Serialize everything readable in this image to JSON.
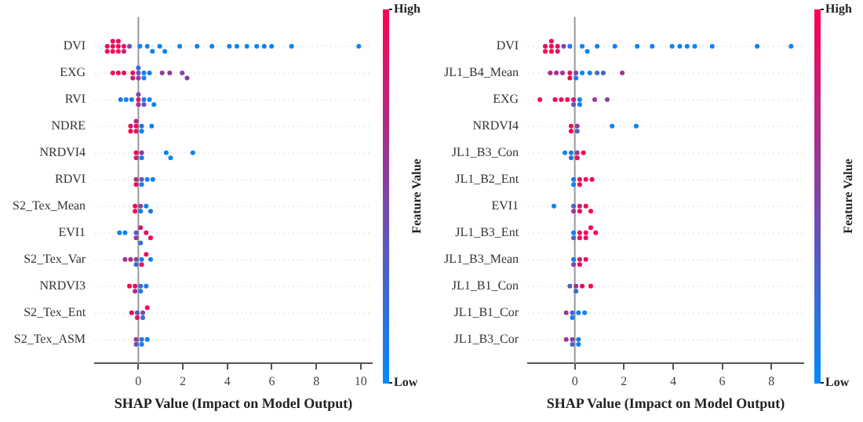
{
  "chart_data": [
    {
      "type": "scatter",
      "orientation": "horizontal",
      "marker": "circle",
      "grid": "y",
      "xlabel": "SHAP Value (Impact on Model Output)",
      "clabel": "Feature Value",
      "annotations": [
        "High",
        "Low"
      ],
      "xlim": [
        -1.95,
        10.5
      ],
      "xticks": [
        0,
        2,
        4,
        6,
        8,
        10
      ],
      "ref_lines": [
        {
          "axis": "x",
          "value": 0,
          "color": "#999999"
        }
      ],
      "categories": [
        "DVI",
        "EXG",
        "RVI",
        "NDRE",
        "NRDVI4",
        "RDVI",
        "S2_Tex_Mean",
        "EVI1",
        "S2_Tex_Var",
        "NRDVI3",
        "S2_Tex_Ent",
        "S2_Tex_ASM"
      ],
      "series": [
        {
          "x": [
            "DVI",
            "DVI",
            "DVI",
            "DVI",
            "DVI",
            "DVI",
            "DVI",
            "DVI",
            "DVI",
            "DVI",
            "DVI",
            "DVI",
            "DVI",
            "DVI",
            "DVI",
            "DVI",
            "DVI",
            "DVI",
            "DVI",
            "DVI",
            "DVI",
            "DVI",
            "DVI",
            "DVI",
            "DVI",
            "DVI",
            "DVI"
          ],
          "values": [
            -1.4,
            -1.4,
            -1.15,
            -1.15,
            -1.15,
            -0.9,
            -0.9,
            -0.9,
            -0.65,
            -0.65,
            -0.4,
            0.07,
            0.4,
            0.63,
            0.96,
            1.19,
            1.86,
            2.64,
            3.31,
            4.09,
            4.43,
            4.88,
            5.32,
            5.66,
            5.99,
            6.89,
            9.91
          ],
          "colors": [
            "#e60e63",
            "#ff0052",
            "#f2075a",
            "#ff0052",
            "#e60e63",
            "#f2075a",
            "#ff0052",
            "#e60e63",
            "#e60e63",
            "#cc1c74",
            "#8045a7",
            "#0d83f3",
            "#0d83f3",
            "#0d83f3",
            "#0d83f3",
            "#0d83f3",
            "#0d83f3",
            "#0d83f3",
            "#0d83f3",
            "#0d83f3",
            "#0d83f3",
            "#0d83f3",
            "#0d83f3",
            "#0d83f3",
            "#0d83f3",
            "#0d83f3",
            "#0d83f3"
          ]
        },
        {
          "x": [
            "EXG",
            "EXG",
            "EXG",
            "EXG",
            "EXG",
            "EXG",
            "EXG",
            "EXG",
            "EXG",
            "EXG",
            "EXG",
            "EXG",
            "EXG",
            "EXG",
            "EXG"
          ],
          "values": [
            -1.15,
            -0.9,
            -0.65,
            -0.25,
            -0.25,
            0,
            0,
            0,
            0.25,
            0.25,
            0.5,
            1.07,
            1.41,
            1.97,
            2.19
          ],
          "colors": [
            "#ff0052",
            "#f2075a",
            "#e60e63",
            "#e60e63",
            "#cc1c74",
            "#6653b7",
            "#993796",
            "#336ed9",
            "#1a7cea",
            "#0d83f3",
            "#1a7cea",
            "#8c3e9e",
            "#993796",
            "#8045a7",
            "#8c3e9e"
          ]
        },
        {
          "x": [
            "RVI",
            "RVI",
            "RVI",
            "RVI",
            "RVI",
            "RVI",
            "RVI",
            "RVI",
            "RVI",
            "RVI"
          ],
          "values": [
            -0.8,
            -0.55,
            -0.3,
            0,
            0,
            0,
            0.25,
            0.25,
            0.5,
            0.7
          ],
          "colors": [
            "#1a7cea",
            "#0d83f3",
            "#1a7cea",
            "#e60e63",
            "#993796",
            "#8045a7",
            "#1a7cea",
            "#6653b7",
            "#0d83f3",
            "#0d83f3"
          ]
        },
        {
          "x": [
            "NDRE",
            "NDRE",
            "NDRE",
            "NDRE",
            "NDRE",
            "NDRE",
            "NDRE",
            "NDRE"
          ],
          "values": [
            -0.35,
            -0.35,
            -0.1,
            -0.1,
            -0.1,
            0.15,
            0.15,
            0.6
          ],
          "colors": [
            "#e60e63",
            "#ff0052",
            "#f2075a",
            "#cc1c74",
            "#b32985",
            "#336ed9",
            "#0d83f3",
            "#0d83f3"
          ]
        },
        {
          "x": [
            "NRDVI4",
            "NRDVI4",
            "NRDVI4",
            "NRDVI4",
            "NRDVI4",
            "NRDVI4",
            "NRDVI4"
          ],
          "values": [
            -0.1,
            -0.1,
            0.15,
            0.15,
            1.25,
            1.45,
            2.45
          ],
          "colors": [
            "#e60e63",
            "#cc1c74",
            "#993796",
            "#1a7cea",
            "#0d83f3",
            "#0d83f3",
            "#0d83f3"
          ]
        },
        {
          "x": [
            "RDVI",
            "RDVI",
            "RDVI",
            "RDVI",
            "RDVI",
            "RDVI"
          ],
          "values": [
            -0.1,
            -0.1,
            0.15,
            0.15,
            0.4,
            0.65
          ],
          "colors": [
            "#b32985",
            "#e60e63",
            "#6653b7",
            "#1a7cea",
            "#0d83f3",
            "#0d83f3"
          ]
        },
        {
          "x": [
            "S2_Tex_Mean",
            "S2_Tex_Mean",
            "S2_Tex_Mean",
            "S2_Tex_Mean",
            "S2_Tex_Mean",
            "S2_Tex_Mean"
          ],
          "values": [
            -0.15,
            -0.15,
            0.1,
            0.1,
            0.35,
            0.55
          ],
          "colors": [
            "#e60e63",
            "#ff0052",
            "#8045a7",
            "#1a7cea",
            "#0d83f3",
            "#1a7cea"
          ]
        },
        {
          "x": [
            "EVI1",
            "EVI1",
            "EVI1",
            "EVI1",
            "EVI1",
            "EVI1",
            "EVI1",
            "EVI1"
          ],
          "values": [
            -0.85,
            -0.6,
            -0.1,
            -0.1,
            0.1,
            0.1,
            0.35,
            0.55
          ],
          "colors": [
            "#0d83f3",
            "#0d83f3",
            "#4d61c8",
            "#993796",
            "#cc1c74",
            "#336ed9",
            "#e60e63",
            "#ff0052"
          ]
        },
        {
          "x": [
            "S2_Tex_Var",
            "S2_Tex_Var",
            "S2_Tex_Var",
            "S2_Tex_Var",
            "S2_Tex_Var",
            "S2_Tex_Var",
            "S2_Tex_Var",
            "S2_Tex_Var"
          ],
          "values": [
            -0.6,
            -0.35,
            -0.1,
            -0.1,
            0.15,
            0.15,
            0.35,
            0.55
          ],
          "colors": [
            "#993796",
            "#b32985",
            "#8045a7",
            "#336ed9",
            "#1a7cea",
            "#e60e63",
            "#f2075a",
            "#0d83f3"
          ]
        },
        {
          "x": [
            "NRDVI3",
            "NRDVI3",
            "NRDVI3",
            "NRDVI3",
            "NRDVI3",
            "NRDVI3"
          ],
          "values": [
            -0.4,
            -0.15,
            -0.15,
            0.1,
            0.1,
            0.35
          ],
          "colors": [
            "#ff0052",
            "#e60e63",
            "#b32985",
            "#336ed9",
            "#1a7cea",
            "#1a7cea"
          ]
        },
        {
          "x": [
            "S2_Tex_Ent",
            "S2_Tex_Ent",
            "S2_Tex_Ent",
            "S2_Tex_Ent",
            "S2_Tex_Ent",
            "S2_Tex_Ent"
          ],
          "values": [
            -0.3,
            -0.05,
            -0.05,
            0.2,
            0.2,
            0.4
          ],
          "colors": [
            "#e60e63",
            "#6653b7",
            "#e60e63",
            "#8045a7",
            "#336ed9",
            "#ff0052"
          ]
        },
        {
          "x": [
            "S2_Tex_ASM",
            "S2_Tex_ASM",
            "S2_Tex_ASM",
            "S2_Tex_ASM",
            "S2_Tex_ASM"
          ],
          "values": [
            -0.1,
            -0.1,
            0.15,
            0.15,
            0.4
          ],
          "colors": [
            "#993796",
            "#6653b7",
            "#336ed9",
            "#0d83f3",
            "#0d83f3"
          ]
        }
      ]
    },
    {
      "type": "scatter",
      "orientation": "horizontal",
      "marker": "circle",
      "grid": "y",
      "xlabel": "SHAP Value (Impact on Model Output)",
      "clabel": "Feature Value",
      "annotations": [
        "High",
        "Low"
      ],
      "xlim": [
        -1.9,
        9.3
      ],
      "xticks": [
        0,
        2,
        4,
        6,
        8
      ],
      "ref_lines": [
        {
          "axis": "x",
          "value": 0,
          "color": "#999999"
        }
      ],
      "categories": [
        "DVI",
        "JL1_B4_Mean",
        "EXG",
        "NRDVI4",
        "JL1_B3_Con",
        "JL1_B2_Ent",
        "EVI1",
        "JL1_B3_Ent",
        "JL1_B3_Mean",
        "JL1_B1_Con",
        "JL1_B1_Cor",
        "JL1_B3_Cor"
      ],
      "series": [
        {
          "x": [
            "DVI",
            "DVI",
            "DVI",
            "DVI",
            "DVI",
            "DVI",
            "DVI",
            "DVI",
            "DVI",
            "DVI",
            "DVI",
            "DVI",
            "DVI",
            "DVI",
            "DVI",
            "DVI",
            "DVI",
            "DVI",
            "DVI",
            "DVI",
            "DVI",
            "DVI"
          ],
          "values": [
            -1.2,
            -1.2,
            -0.95,
            -0.95,
            -0.95,
            -0.7,
            -0.7,
            -0.45,
            -0.2,
            0.3,
            0.51,
            0.91,
            1.63,
            2.54,
            3.15,
            3.96,
            4.27,
            4.57,
            4.88,
            5.59,
            7.42,
            8.8
          ],
          "colors": [
            "#e60e63",
            "#ff0052",
            "#f2075a",
            "#ff0052",
            "#e60e63",
            "#f2075a",
            "#d9156b",
            "#8045a7",
            "#1a7cea",
            "#0d83f3",
            "#0d83f3",
            "#0d83f3",
            "#0d83f3",
            "#0d83f3",
            "#0d83f3",
            "#0d83f3",
            "#0d83f3",
            "#0d83f3",
            "#0d83f3",
            "#0d83f3",
            "#0d83f3",
            "#0d83f3"
          ]
        },
        {
          "x": [
            "JL1_B4_Mean",
            "JL1_B4_Mean",
            "JL1_B4_Mean",
            "JL1_B4_Mean",
            "JL1_B4_Mean",
            "JL1_B4_Mean",
            "JL1_B4_Mean",
            "JL1_B4_Mean",
            "JL1_B4_Mean",
            "JL1_B4_Mean",
            "JL1_B4_Mean",
            "JL1_B4_Mean"
          ],
          "values": [
            -1.0,
            -0.75,
            -0.5,
            -0.2,
            -0.2,
            0.05,
            0.05,
            0.3,
            0.61,
            0.91,
            1.16,
            1.93
          ],
          "colors": [
            "#b32985",
            "#a6308d",
            "#993796",
            "#e60e63",
            "#ff0052",
            "#8045a7",
            "#1a7cea",
            "#0d83f3",
            "#1a7cea",
            "#336ed9",
            "#4d61c8",
            "#993796"
          ]
        },
        {
          "x": [
            "EXG",
            "EXG",
            "EXG",
            "EXG",
            "EXG",
            "EXG",
            "EXG",
            "EXG",
            "EXG",
            "EXG"
          ],
          "values": [
            -1.42,
            -0.8,
            -0.55,
            -0.3,
            -0.05,
            -0.05,
            0.2,
            0.2,
            0.81,
            1.32
          ],
          "colors": [
            "#e60e63",
            "#ff0052",
            "#f2075a",
            "#ff0052",
            "#cc1c74",
            "#6653b7",
            "#1a7cea",
            "#0d83f3",
            "#993796",
            "#8c3e9e"
          ]
        },
        {
          "x": [
            "NRDVI4",
            "NRDVI4",
            "NRDVI4",
            "NRDVI4",
            "NRDVI4",
            "NRDVI4"
          ],
          "values": [
            -0.15,
            -0.15,
            0.1,
            0.1,
            1.52,
            2.5
          ],
          "colors": [
            "#e60e63",
            "#ff0052",
            "#993796",
            "#4d61c8",
            "#0d83f3",
            "#0d83f3"
          ]
        },
        {
          "x": [
            "JL1_B3_Con",
            "JL1_B3_Con",
            "JL1_B3_Con",
            "JL1_B3_Con",
            "JL1_B3_Con",
            "JL1_B3_Con"
          ],
          "values": [
            -0.4,
            -0.15,
            -0.15,
            0.1,
            0.1,
            0.35
          ],
          "colors": [
            "#0d83f3",
            "#1a7cea",
            "#336ed9",
            "#993796",
            "#e60e63",
            "#ff0052"
          ]
        },
        {
          "x": [
            "JL1_B2_Ent",
            "JL1_B2_Ent",
            "JL1_B2_Ent",
            "JL1_B2_Ent",
            "JL1_B2_Ent",
            "JL1_B2_Ent"
          ],
          "values": [
            -0.05,
            -0.05,
            0.2,
            0.2,
            0.45,
            0.7
          ],
          "colors": [
            "#1a7cea",
            "#0d83f3",
            "#e60e63",
            "#ff0052",
            "#f2075a",
            "#f2075a"
          ]
        },
        {
          "x": [
            "EVI1",
            "EVI1",
            "EVI1",
            "EVI1",
            "EVI1",
            "EVI1",
            "EVI1"
          ],
          "values": [
            -0.85,
            -0.05,
            -0.05,
            0.2,
            0.2,
            0.45,
            0.65
          ],
          "colors": [
            "#0d83f3",
            "#4d61c8",
            "#993796",
            "#cc1c74",
            "#e60e63",
            "#f2075a",
            "#ff0052"
          ]
        },
        {
          "x": [
            "JL1_B3_Ent",
            "JL1_B3_Ent",
            "JL1_B3_Ent",
            "JL1_B3_Ent",
            "JL1_B3_Ent",
            "JL1_B3_Ent",
            "JL1_B3_Ent",
            "JL1_B3_Ent"
          ],
          "values": [
            -0.05,
            -0.05,
            0.2,
            0.2,
            0.45,
            0.45,
            0.65,
            0.85
          ],
          "colors": [
            "#0d83f3",
            "#4d61c8",
            "#e60e63",
            "#f2075a",
            "#ff0052",
            "#e60e63",
            "#ff0052",
            "#ff0052"
          ]
        },
        {
          "x": [
            "JL1_B3_Mean",
            "JL1_B3_Mean",
            "JL1_B3_Mean",
            "JL1_B3_Mean",
            "JL1_B3_Mean"
          ],
          "values": [
            -0.05,
            -0.05,
            0.2,
            0.2,
            0.45
          ],
          "colors": [
            "#1a7cea",
            "#8045a7",
            "#cc1c74",
            "#f2075a",
            "#e60e63"
          ]
        },
        {
          "x": [
            "JL1_B1_Con",
            "JL1_B1_Con",
            "JL1_B1_Con",
            "JL1_B1_Con",
            "JL1_B1_Con"
          ],
          "values": [
            -0.2,
            0.05,
            0.05,
            0.3,
            0.65
          ],
          "colors": [
            "#4d61c8",
            "#993796",
            "#336ed9",
            "#e60e63",
            "#ff0052"
          ]
        },
        {
          "x": [
            "JL1_B1_Cor",
            "JL1_B1_Cor",
            "JL1_B1_Cor",
            "JL1_B1_Cor",
            "JL1_B1_Cor"
          ],
          "values": [
            -0.35,
            -0.1,
            -0.1,
            0.15,
            0.4
          ],
          "colors": [
            "#993796",
            "#4d61c8",
            "#1a7cea",
            "#0d83f3",
            "#0d83f3"
          ]
        },
        {
          "x": [
            "JL1_B3_Cor",
            "JL1_B3_Cor",
            "JL1_B3_Cor",
            "JL1_B3_Cor",
            "JL1_B3_Cor"
          ],
          "values": [
            -0.35,
            -0.1,
            -0.1,
            0.15,
            0.15
          ],
          "colors": [
            "#993796",
            "#8045a7",
            "#4d61c8",
            "#1a7cea",
            "#0d83f3"
          ]
        }
      ]
    }
  ]
}
